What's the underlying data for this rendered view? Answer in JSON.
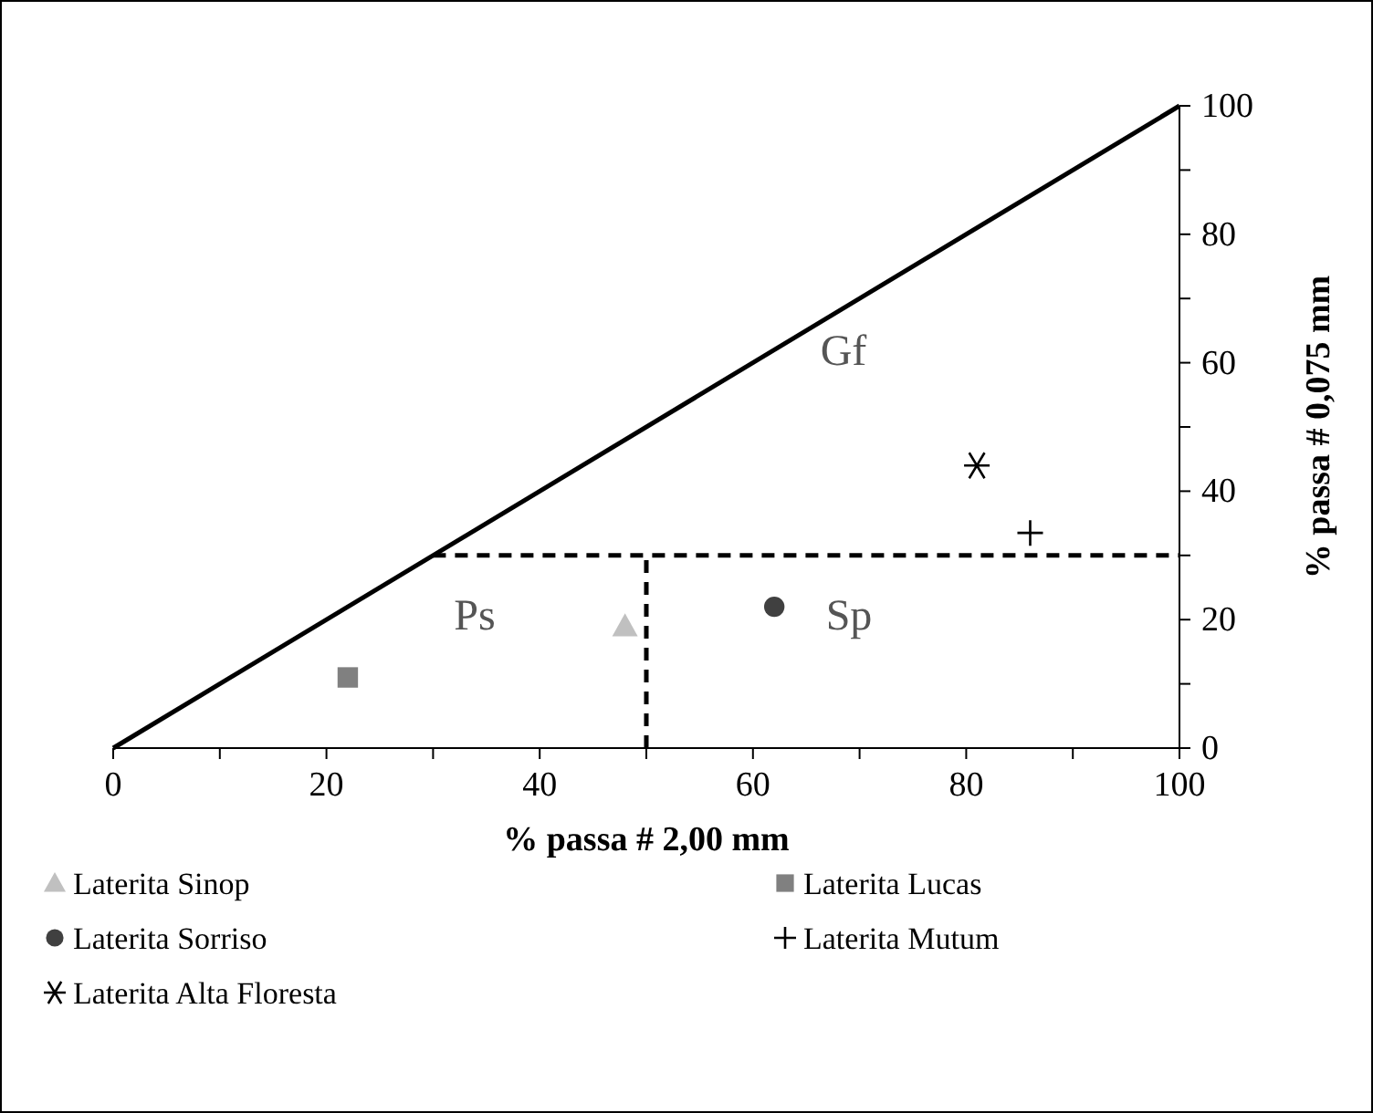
{
  "chart_data": {
    "type": "scatter",
    "xlabel": "% passa # 2,00 mm",
    "ylabel": "% passa # 0,075 mm",
    "xlim": [
      0,
      100
    ],
    "ylim": [
      0,
      100
    ],
    "xticks": [
      0,
      {
        "value": 10,
        "label": null
      },
      20,
      {
        "value": 30,
        "label": null
      },
      40,
      {
        "value": 50,
        "label": null
      },
      60,
      {
        "value": 70,
        "label": null
      },
      80,
      {
        "value": 90,
        "label": null
      },
      100
    ],
    "yticks": [
      0,
      {
        "value": 10,
        "label": null
      },
      20,
      {
        "value": 30,
        "label": null
      },
      40,
      {
        "value": 50,
        "label": null
      },
      60,
      {
        "value": 70,
        "label": null
      },
      80,
      {
        "value": 90,
        "label": null
      },
      100
    ],
    "grid": false,
    "legend": "bottom",
    "annotations": [
      "Gf",
      "Ps",
      "Sp"
    ],
    "series": [
      {
        "type": "line",
        "color": "#000000",
        "x": [
          0,
          100
        ],
        "values": [
          0,
          100
        ],
        "marker": "none",
        "line_style": "solid"
      },
      {
        "type": "line",
        "color": "#000000",
        "x": [
          30,
          100
        ],
        "values": [
          30,
          30
        ],
        "marker": "none",
        "line_style": "dashed"
      },
      {
        "type": "line",
        "color": "#000000",
        "x": [
          50,
          50
        ],
        "values": [
          0,
          30
        ],
        "marker": "none",
        "line_style": "dashed"
      },
      {
        "name": "Laterita Sinop",
        "color": "#c0c0c0",
        "x": [
          48
        ],
        "values": [
          19
        ],
        "marker": "triangle"
      },
      {
        "name": "Laterita Lucas",
        "color": "#808080",
        "x": [
          22
        ],
        "values": [
          11
        ],
        "marker": "square"
      },
      {
        "name": "Laterita Sorriso",
        "color": "#404040",
        "x": [
          62
        ],
        "values": [
          22
        ],
        "marker": "circle"
      },
      {
        "name": "Laterita Mutum",
        "color": "#000000",
        "x": [
          86
        ],
        "values": [
          33.5
        ],
        "marker": "cross"
      },
      {
        "name": "Laterita Alta Floresta",
        "color": "#000000",
        "x": [
          81
        ],
        "values": [
          44
        ],
        "marker": "cross"
      }
    ]
  }
}
